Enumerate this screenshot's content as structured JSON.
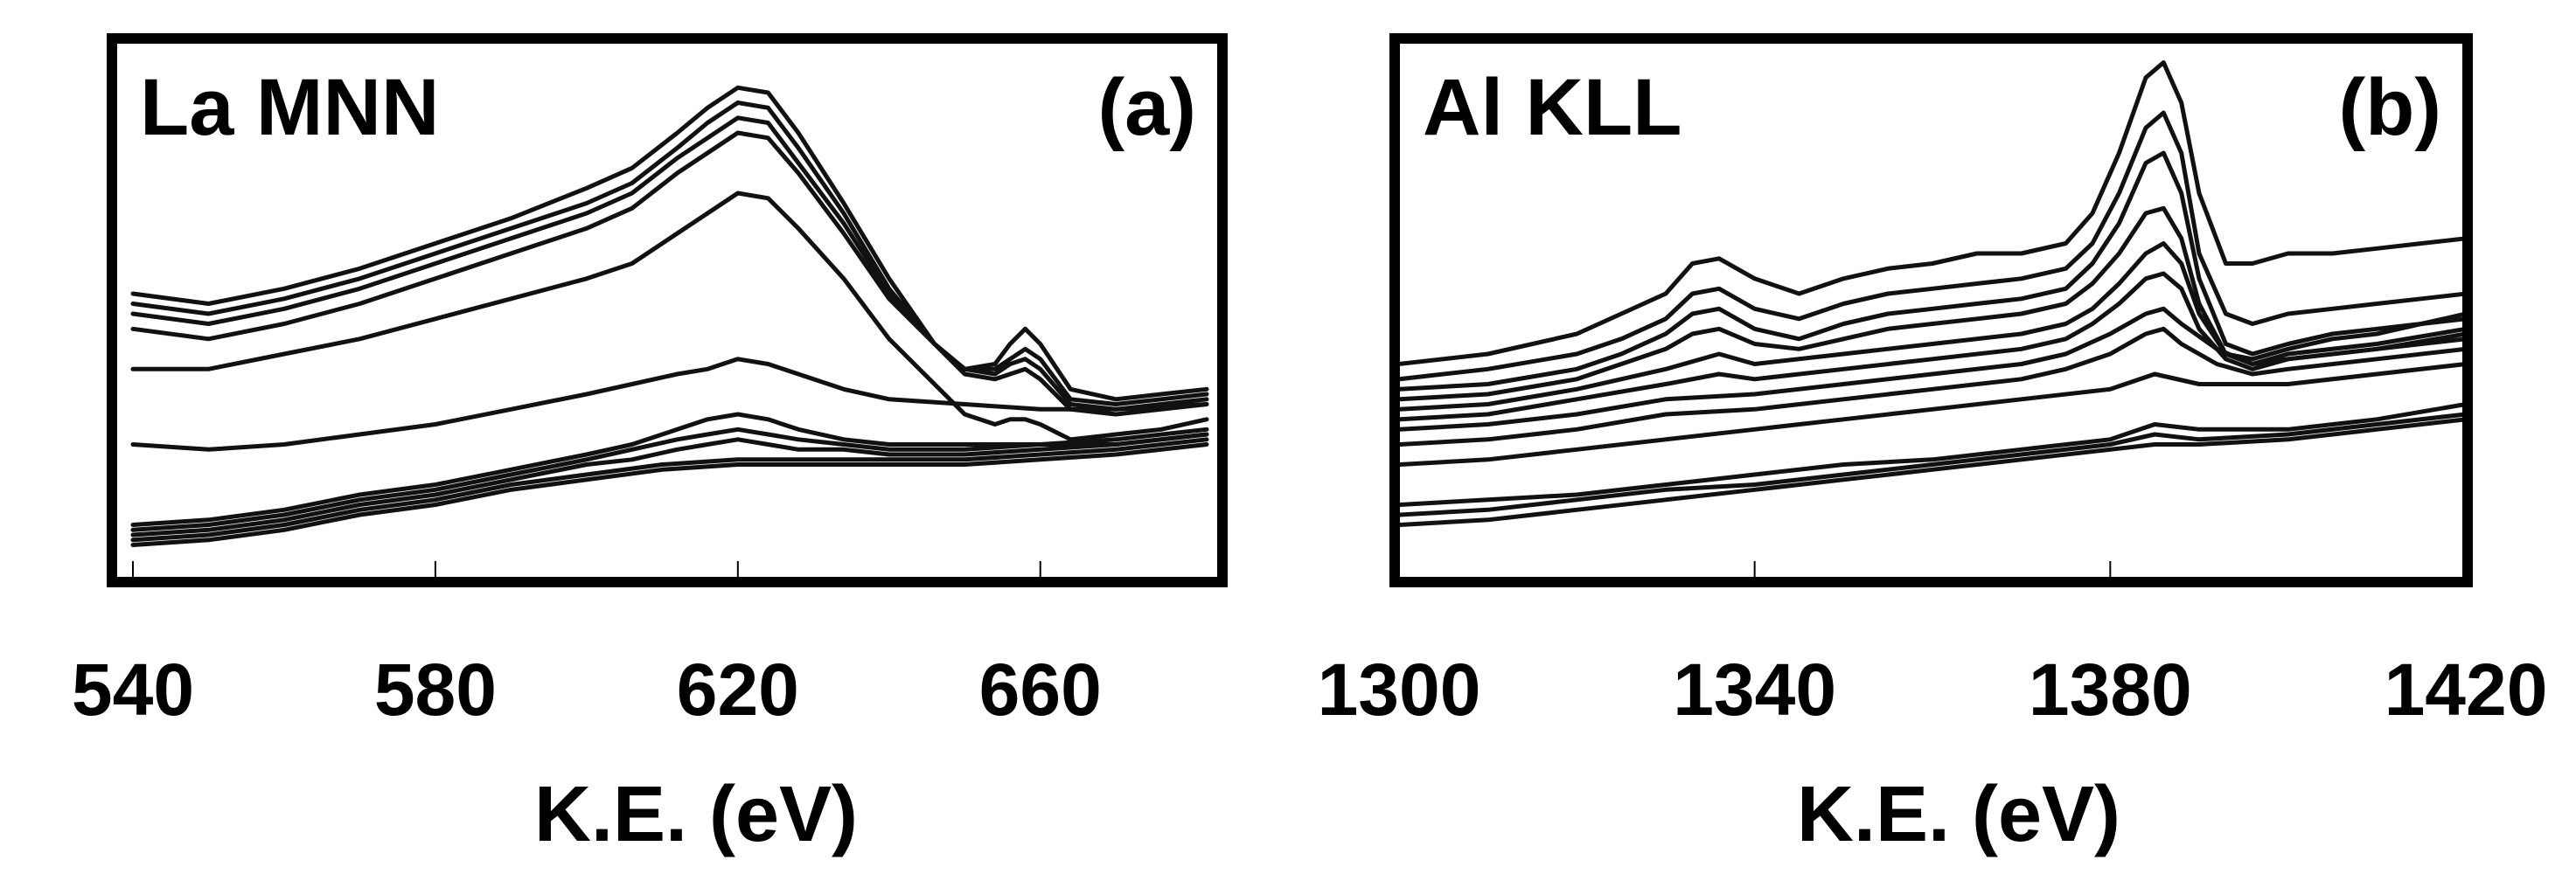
{
  "chart_data": [
    {
      "type": "line",
      "title": "La MNN",
      "panel_label": "(a)",
      "xlabel": "K.E. (eV)",
      "ylabel": "",
      "xlim": [
        540,
        682
      ],
      "ylim": [
        0,
        1
      ],
      "y_axis_labels": false,
      "xticks": [
        540,
        580,
        620,
        660
      ],
      "grid": false,
      "legend": "none",
      "line_color": "#111111",
      "series": [
        {
          "x": [
            540,
            550,
            560,
            570,
            580,
            590,
            600,
            606,
            612,
            616,
            620,
            624,
            628,
            634,
            640,
            646,
            650,
            654,
            656,
            658,
            660,
            664,
            670,
            676,
            682
          ],
          "y": [
            0.52,
            0.5,
            0.53,
            0.57,
            0.62,
            0.67,
            0.73,
            0.77,
            0.84,
            0.89,
            0.93,
            0.92,
            0.84,
            0.7,
            0.55,
            0.42,
            0.37,
            0.38,
            0.42,
            0.45,
            0.42,
            0.33,
            0.31,
            0.32,
            0.33
          ]
        },
        {
          "x": [
            540,
            550,
            560,
            570,
            580,
            590,
            600,
            606,
            612,
            616,
            620,
            624,
            628,
            634,
            640,
            646,
            650,
            654,
            656,
            658,
            660,
            664,
            670,
            676,
            682
          ],
          "y": [
            0.5,
            0.48,
            0.51,
            0.55,
            0.6,
            0.65,
            0.7,
            0.74,
            0.81,
            0.86,
            0.9,
            0.89,
            0.81,
            0.68,
            0.53,
            0.42,
            0.37,
            0.37,
            0.39,
            0.41,
            0.39,
            0.31,
            0.3,
            0.31,
            0.32
          ]
        },
        {
          "x": [
            540,
            550,
            560,
            570,
            580,
            590,
            600,
            606,
            612,
            616,
            620,
            624,
            628,
            634,
            640,
            646,
            650,
            654,
            656,
            658,
            660,
            664,
            670,
            676,
            682
          ],
          "y": [
            0.48,
            0.46,
            0.49,
            0.53,
            0.58,
            0.63,
            0.68,
            0.72,
            0.79,
            0.83,
            0.87,
            0.86,
            0.78,
            0.66,
            0.52,
            0.42,
            0.37,
            0.36,
            0.38,
            0.39,
            0.37,
            0.3,
            0.29,
            0.3,
            0.31
          ]
        },
        {
          "x": [
            540,
            550,
            560,
            570,
            580,
            590,
            600,
            606,
            612,
            616,
            620,
            624,
            628,
            634,
            640,
            646,
            650,
            654,
            656,
            658,
            660,
            664,
            670,
            676,
            682
          ],
          "y": [
            0.45,
            0.43,
            0.46,
            0.5,
            0.55,
            0.6,
            0.65,
            0.69,
            0.76,
            0.8,
            0.84,
            0.83,
            0.76,
            0.64,
            0.51,
            0.42,
            0.36,
            0.35,
            0.36,
            0.37,
            0.35,
            0.29,
            0.28,
            0.29,
            0.3
          ]
        },
        {
          "x": [
            540,
            550,
            560,
            570,
            580,
            590,
            600,
            606,
            612,
            616,
            620,
            624,
            628,
            634,
            640,
            646,
            650,
            654,
            656,
            658,
            660,
            664,
            670,
            676,
            682
          ],
          "y": [
            0.37,
            0.37,
            0.4,
            0.43,
            0.47,
            0.51,
            0.55,
            0.58,
            0.64,
            0.68,
            0.72,
            0.71,
            0.65,
            0.55,
            0.43,
            0.34,
            0.28,
            0.26,
            0.27,
            0.27,
            0.26,
            0.23,
            0.24,
            0.25,
            0.27
          ]
        },
        {
          "x": [
            540,
            550,
            560,
            570,
            580,
            590,
            600,
            606,
            612,
            616,
            620,
            624,
            628,
            634,
            640,
            650,
            660,
            670,
            682
          ],
          "y": [
            0.22,
            0.21,
            0.22,
            0.24,
            0.26,
            0.29,
            0.32,
            0.34,
            0.36,
            0.37,
            0.39,
            0.38,
            0.36,
            0.33,
            0.31,
            0.3,
            0.29,
            0.29,
            0.3
          ]
        },
        {
          "x": [
            540,
            550,
            560,
            570,
            580,
            590,
            600,
            606,
            612,
            616,
            620,
            624,
            628,
            634,
            640,
            650,
            660,
            670,
            682
          ],
          "y": [
            0.06,
            0.07,
            0.09,
            0.12,
            0.14,
            0.17,
            0.2,
            0.22,
            0.25,
            0.27,
            0.28,
            0.27,
            0.25,
            0.23,
            0.22,
            0.22,
            0.22,
            0.23,
            0.25
          ]
        },
        {
          "x": [
            540,
            550,
            560,
            570,
            580,
            590,
            600,
            606,
            612,
            616,
            620,
            624,
            628,
            634,
            640,
            650,
            660,
            670,
            682
          ],
          "y": [
            0.05,
            0.06,
            0.08,
            0.11,
            0.13,
            0.16,
            0.19,
            0.21,
            0.23,
            0.24,
            0.25,
            0.24,
            0.23,
            0.22,
            0.21,
            0.21,
            0.22,
            0.22,
            0.24
          ]
        },
        {
          "x": [
            540,
            550,
            560,
            570,
            580,
            590,
            600,
            606,
            612,
            616,
            620,
            624,
            628,
            634,
            640,
            650,
            660,
            670,
            682
          ],
          "y": [
            0.04,
            0.05,
            0.07,
            0.1,
            0.12,
            0.15,
            0.18,
            0.19,
            0.21,
            0.22,
            0.23,
            0.22,
            0.21,
            0.21,
            0.2,
            0.2,
            0.21,
            0.22,
            0.24
          ]
        },
        {
          "x": [
            540,
            550,
            560,
            570,
            580,
            590,
            600,
            610,
            620,
            630,
            640,
            650,
            660,
            670,
            682
          ],
          "y": [
            0.03,
            0.04,
            0.06,
            0.09,
            0.11,
            0.14,
            0.16,
            0.18,
            0.19,
            0.19,
            0.19,
            0.19,
            0.2,
            0.21,
            0.23
          ]
        },
        {
          "x": [
            540,
            550,
            560,
            570,
            580,
            590,
            600,
            610,
            620,
            630,
            640,
            650,
            660,
            670,
            682
          ],
          "y": [
            0.02,
            0.03,
            0.05,
            0.08,
            0.1,
            0.13,
            0.15,
            0.17,
            0.18,
            0.18,
            0.18,
            0.18,
            0.19,
            0.2,
            0.22
          ]
        }
      ]
    },
    {
      "type": "line",
      "title": "Al KLL",
      "panel_label": "(b)",
      "xlabel": "K.E. (eV)",
      "ylabel": "",
      "xlim": [
        1300,
        1420
      ],
      "ylim": [
        0,
        1
      ],
      "y_axis_labels": false,
      "xticks": [
        1300,
        1340,
        1380,
        1420
      ],
      "grid": false,
      "legend": "none",
      "line_color": "#111111",
      "series": [
        {
          "x": [
            1300,
            1310,
            1320,
            1325,
            1330,
            1333,
            1336,
            1340,
            1345,
            1350,
            1355,
            1360,
            1365,
            1370,
            1375,
            1378,
            1381,
            1384,
            1386,
            1388,
            1390,
            1393,
            1396,
            1400,
            1405,
            1410,
            1415,
            1420
          ],
          "y": [
            0.38,
            0.4,
            0.44,
            0.48,
            0.52,
            0.58,
            0.59,
            0.55,
            0.52,
            0.55,
            0.57,
            0.58,
            0.6,
            0.6,
            0.62,
            0.68,
            0.8,
            0.95,
            0.98,
            0.9,
            0.72,
            0.58,
            0.58,
            0.6,
            0.6,
            0.61,
            0.62,
            0.63
          ]
        },
        {
          "x": [
            1300,
            1310,
            1320,
            1325,
            1330,
            1333,
            1336,
            1340,
            1345,
            1350,
            1355,
            1360,
            1365,
            1370,
            1375,
            1378,
            1381,
            1384,
            1386,
            1388,
            1390,
            1393,
            1396,
            1400,
            1405,
            1410,
            1415,
            1420
          ],
          "y": [
            0.35,
            0.37,
            0.4,
            0.43,
            0.47,
            0.52,
            0.53,
            0.49,
            0.47,
            0.5,
            0.52,
            0.53,
            0.54,
            0.55,
            0.57,
            0.62,
            0.72,
            0.85,
            0.88,
            0.8,
            0.6,
            0.48,
            0.46,
            0.48,
            0.49,
            0.5,
            0.51,
            0.52
          ]
        },
        {
          "x": [
            1300,
            1310,
            1320,
            1325,
            1330,
            1333,
            1336,
            1340,
            1345,
            1350,
            1355,
            1360,
            1365,
            1370,
            1375,
            1378,
            1381,
            1384,
            1386,
            1388,
            1390,
            1393,
            1396,
            1400,
            1405,
            1410,
            1415,
            1420
          ],
          "y": [
            0.33,
            0.34,
            0.37,
            0.4,
            0.44,
            0.48,
            0.49,
            0.45,
            0.43,
            0.46,
            0.48,
            0.49,
            0.5,
            0.51,
            0.53,
            0.58,
            0.66,
            0.78,
            0.8,
            0.72,
            0.55,
            0.42,
            0.4,
            0.42,
            0.44,
            0.45,
            0.46,
            0.48
          ]
        },
        {
          "x": [
            1300,
            1310,
            1320,
            1325,
            1330,
            1333,
            1336,
            1340,
            1345,
            1350,
            1355,
            1360,
            1365,
            1370,
            1375,
            1378,
            1381,
            1384,
            1386,
            1388,
            1390,
            1393,
            1396,
            1400,
            1405,
            1410,
            1415,
            1420
          ],
          "y": [
            0.31,
            0.32,
            0.35,
            0.38,
            0.41,
            0.44,
            0.45,
            0.42,
            0.41,
            0.43,
            0.45,
            0.46,
            0.47,
            0.48,
            0.5,
            0.54,
            0.6,
            0.68,
            0.69,
            0.63,
            0.5,
            0.4,
            0.39,
            0.41,
            0.43,
            0.44,
            0.46,
            0.47
          ]
        },
        {
          "x": [
            1300,
            1310,
            1320,
            1330,
            1336,
            1340,
            1350,
            1360,
            1370,
            1375,
            1378,
            1381,
            1384,
            1386,
            1388,
            1390,
            1393,
            1396,
            1400,
            1410,
            1420
          ],
          "y": [
            0.29,
            0.3,
            0.33,
            0.37,
            0.4,
            0.38,
            0.4,
            0.42,
            0.44,
            0.46,
            0.49,
            0.54,
            0.6,
            0.62,
            0.58,
            0.48,
            0.4,
            0.38,
            0.4,
            0.42,
            0.45
          ]
        },
        {
          "x": [
            1300,
            1310,
            1320,
            1330,
            1336,
            1340,
            1350,
            1360,
            1370,
            1375,
            1378,
            1381,
            1384,
            1386,
            1388,
            1390,
            1393,
            1396,
            1400,
            1410,
            1420
          ],
          "y": [
            0.27,
            0.28,
            0.31,
            0.34,
            0.36,
            0.35,
            0.37,
            0.39,
            0.41,
            0.43,
            0.46,
            0.5,
            0.55,
            0.56,
            0.53,
            0.45,
            0.39,
            0.37,
            0.39,
            0.41,
            0.44
          ]
        },
        {
          "x": [
            1300,
            1310,
            1320,
            1330,
            1340,
            1350,
            1360,
            1370,
            1375,
            1380,
            1384,
            1386,
            1388,
            1392,
            1396,
            1400,
            1410,
            1420
          ],
          "y": [
            0.25,
            0.26,
            0.28,
            0.31,
            0.32,
            0.34,
            0.36,
            0.38,
            0.4,
            0.44,
            0.48,
            0.49,
            0.46,
            0.41,
            0.38,
            0.39,
            0.41,
            0.43
          ]
        },
        {
          "x": [
            1300,
            1310,
            1320,
            1330,
            1340,
            1350,
            1360,
            1370,
            1375,
            1380,
            1384,
            1386,
            1388,
            1392,
            1396,
            1400,
            1410,
            1420
          ],
          "y": [
            0.22,
            0.23,
            0.25,
            0.28,
            0.29,
            0.31,
            0.33,
            0.35,
            0.37,
            0.4,
            0.44,
            0.45,
            0.42,
            0.38,
            0.36,
            0.37,
            0.39,
            0.41
          ]
        },
        {
          "x": [
            1300,
            1310,
            1320,
            1330,
            1340,
            1350,
            1360,
            1370,
            1380,
            1385,
            1390,
            1400,
            1410,
            1420
          ],
          "y": [
            0.18,
            0.19,
            0.21,
            0.23,
            0.25,
            0.27,
            0.29,
            0.31,
            0.33,
            0.36,
            0.34,
            0.34,
            0.36,
            0.38
          ]
        },
        {
          "x": [
            1300,
            1310,
            1320,
            1330,
            1340,
            1350,
            1360,
            1370,
            1380,
            1385,
            1390,
            1400,
            1410,
            1420
          ],
          "y": [
            0.1,
            0.11,
            0.12,
            0.14,
            0.16,
            0.18,
            0.19,
            0.21,
            0.23,
            0.26,
            0.25,
            0.25,
            0.27,
            0.3
          ]
        },
        {
          "x": [
            1300,
            1310,
            1320,
            1330,
            1340,
            1350,
            1360,
            1370,
            1380,
            1385,
            1390,
            1400,
            1410,
            1420
          ],
          "y": [
            0.08,
            0.09,
            0.11,
            0.13,
            0.14,
            0.16,
            0.18,
            0.2,
            0.22,
            0.24,
            0.23,
            0.24,
            0.26,
            0.28
          ]
        },
        {
          "x": [
            1300,
            1310,
            1320,
            1330,
            1340,
            1350,
            1360,
            1370,
            1380,
            1385,
            1390,
            1400,
            1410,
            1420
          ],
          "y": [
            0.06,
            0.07,
            0.09,
            0.11,
            0.13,
            0.15,
            0.17,
            0.19,
            0.21,
            0.22,
            0.22,
            0.23,
            0.25,
            0.27
          ]
        }
      ]
    }
  ]
}
